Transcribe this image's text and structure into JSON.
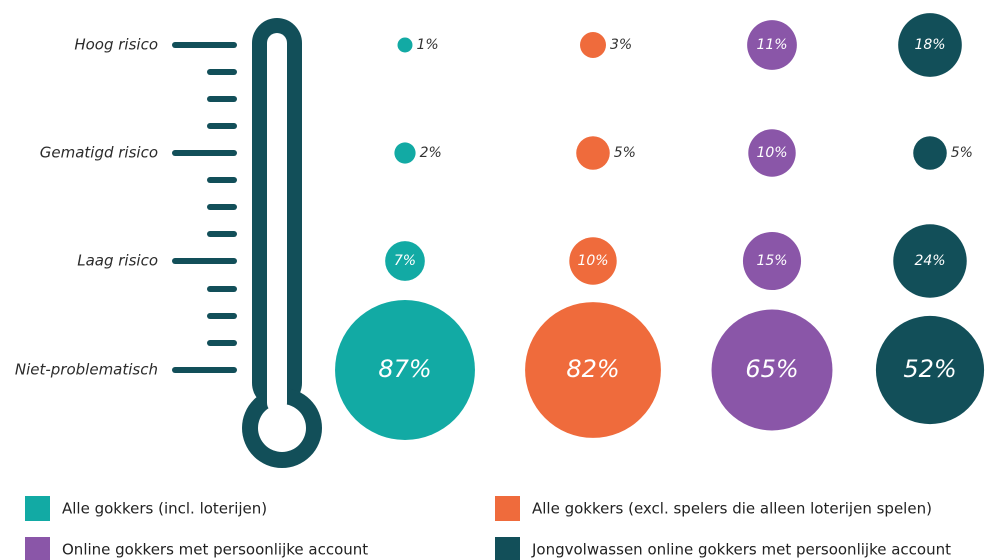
{
  "chart_data": {
    "type": "bubble",
    "categories": [
      "Hoog risico",
      "Gematigd risico",
      "Laag risico",
      "Niet-problematisch"
    ],
    "series": [
      {
        "name": "Alle gokkers (incl. loterijen)",
        "color": "#12aaa4",
        "values": [
          1,
          2,
          7,
          87
        ],
        "value_labels": [
          "1%",
          "2%",
          "7%",
          "87%"
        ]
      },
      {
        "name": "Alle gokkers (excl. spelers die alleen loterijen spelen)",
        "color": "#ef6b3c",
        "values": [
          3,
          5,
          10,
          82
        ],
        "value_labels": [
          "3%",
          "5%",
          "10%",
          "82%"
        ]
      },
      {
        "name": "Online gokkers met persoonlijke account",
        "color": "#8a56a8",
        "values": [
          11,
          10,
          15,
          65
        ],
        "value_labels": [
          "11%",
          "10%",
          "15%",
          "65%"
        ]
      },
      {
        "name": "Jongvolwassen online gokkers met persoonlijke account",
        "color": "#124f59",
        "values": [
          18,
          5,
          24,
          52
        ],
        "value_labels": [
          "18%",
          "5%",
          "24%",
          "52%"
        ]
      }
    ]
  }
}
